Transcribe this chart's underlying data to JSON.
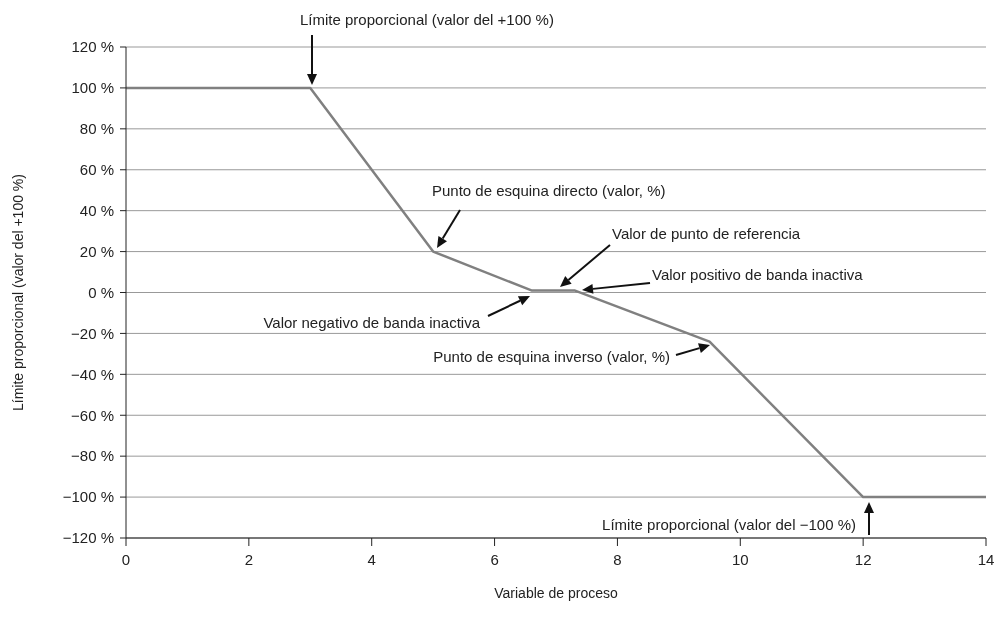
{
  "chart_data": {
    "type": "line",
    "xlabel": "Variable de proceso",
    "ylabel": "Límite proporcional (valor del +100 %)",
    "x": [
      0,
      3,
      5,
      6.6,
      7.3,
      9.5,
      12,
      14
    ],
    "series": [
      {
        "color": "#808080",
        "values": [
          100,
          100,
          20,
          1,
          1,
          -24,
          -100,
          -100
        ]
      }
    ],
    "xlim": [
      0,
      14
    ],
    "xticks": [
      0,
      2,
      4,
      6,
      8,
      10,
      12,
      14
    ],
    "ylim": [
      -120,
      120
    ],
    "yticks": [
      {
        "value": -120,
        "label": "−120 %"
      },
      {
        "value": -100,
        "label": "−100 %"
      },
      {
        "value": -80,
        "label": "−80 %"
      },
      {
        "value": -60,
        "label": "−60 %"
      },
      {
        "value": -40,
        "label": "−40 %"
      },
      {
        "value": -20,
        "label": "−20 %"
      },
      {
        "value": 0,
        "label": "0 %"
      },
      {
        "value": 20,
        "label": "20 %"
      },
      {
        "value": 40,
        "label": "40 %"
      },
      {
        "value": 60,
        "label": "60 %"
      },
      {
        "value": 80,
        "label": "80 %"
      },
      {
        "value": 100,
        "label": "100 %"
      },
      {
        "value": 120,
        "label": "120 %"
      }
    ],
    "grid": "y",
    "legend": false,
    "marker": "none",
    "line_style": "solid",
    "annotations": [
      "Límite proporcional (valor del +100 %)",
      "Punto de esquina directo (valor, %)",
      "Valor de punto de referencia",
      "Valor positivo de banda inactiva",
      "Valor negativo de banda inactiva",
      "Punto de esquina inverso (valor, %)",
      "Límite proporcional (valor del −100 %)"
    ]
  }
}
